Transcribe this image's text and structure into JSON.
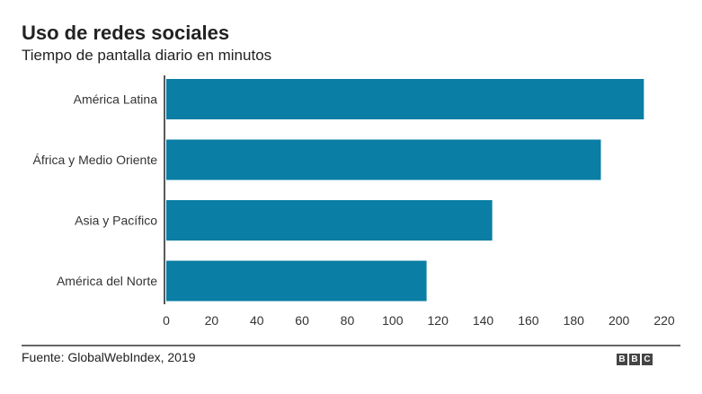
{
  "chart_data": {
    "type": "bar",
    "orientation": "horizontal",
    "title": "Uso de redes sociales",
    "subtitle": "Tiempo de pantalla diario en minutos",
    "categories": [
      "América Latina",
      "África y Medio Oriente",
      "Asia y Pacífico",
      "América del Norte"
    ],
    "values": [
      211,
      192,
      144,
      115
    ],
    "xlim": [
      0,
      220
    ],
    "xticks": [
      0,
      20,
      40,
      60,
      80,
      100,
      120,
      140,
      160,
      180,
      200,
      220
    ],
    "grid": false,
    "bar_color": "#0a7ea4",
    "source": "Fuente: GlobalWebIndex, 2019",
    "logo": "BBC"
  }
}
